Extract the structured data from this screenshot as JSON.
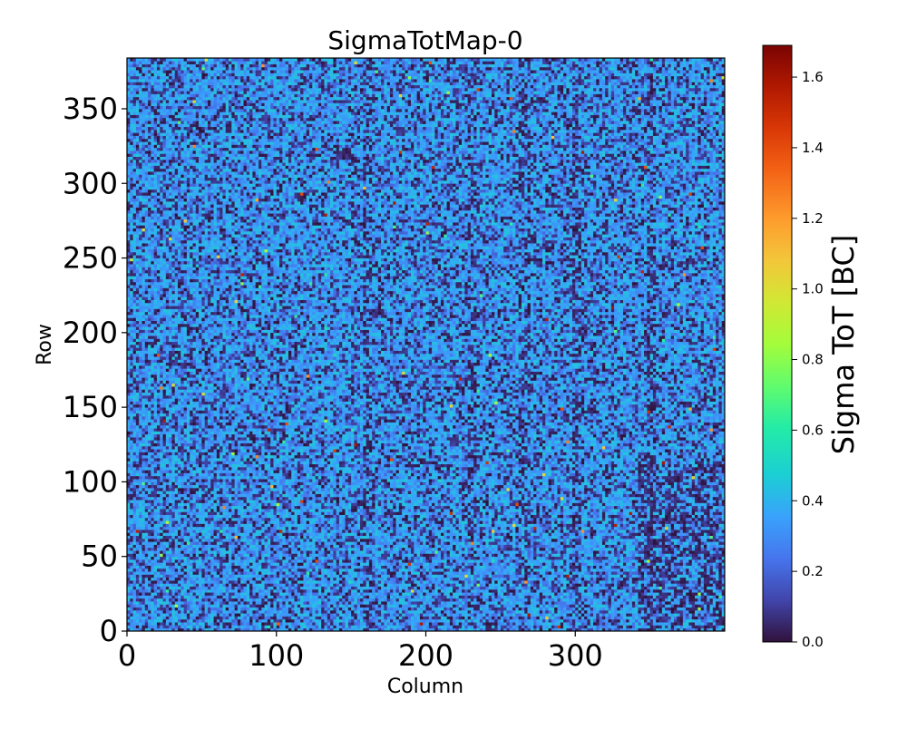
{
  "chart_data": {
    "type": "heatmap",
    "title": "SigmaTotMap-0",
    "xlabel": "Column",
    "ylabel": "Row",
    "xlim": [
      0,
      400
    ],
    "ylim": [
      0,
      384
    ],
    "x_ticks": [
      0,
      100,
      200,
      300
    ],
    "y_ticks": [
      0,
      50,
      100,
      150,
      200,
      250,
      300,
      350
    ],
    "x_tick_labels": [
      "0",
      "100",
      "200",
      "300"
    ],
    "y_tick_labels": [
      "0",
      "50",
      "100",
      "150",
      "200",
      "250",
      "300",
      "350"
    ],
    "colorbar": {
      "label": "Sigma ToT [BC]",
      "range": [
        0.0,
        1.69
      ],
      "ticks": [
        0.0,
        0.2,
        0.4,
        0.6,
        0.8,
        1.0,
        1.2,
        1.4,
        1.6
      ],
      "tick_labels": [
        "0.0",
        "0.2",
        "0.4",
        "0.6",
        "0.8",
        "1.0",
        "1.2",
        "1.4",
        "1.6"
      ],
      "colormap": "turbo"
    },
    "grid": false,
    "values_summary": {
      "typical_value": 0.35,
      "typical_range": [
        0.0,
        0.45
      ],
      "rare_outliers_max": 1.69,
      "note": "noise-like pixel map; darker vertical streaks near columns 160, 230, 265, 300, 350 and lower-right corner"
    }
  }
}
